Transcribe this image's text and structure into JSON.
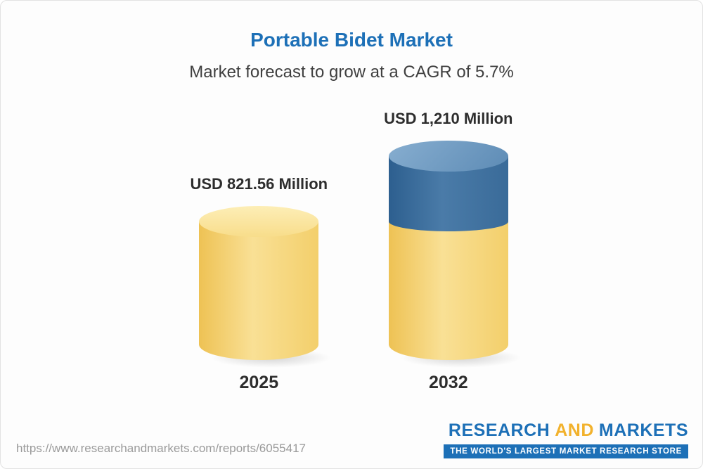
{
  "page": {
    "title": "Portable Bidet Market",
    "subtitle": "Market forecast to grow at a CAGR of 5.7%"
  },
  "chart_data": {
    "type": "bar",
    "title": "Portable Bidet Market",
    "subtitle": "Market forecast to grow at a CAGR of 5.7%",
    "unit": "USD Million",
    "categories": [
      "2025",
      "2032"
    ],
    "values": [
      821.56,
      1210
    ],
    "value_labels": [
      "USD 821.56 Million",
      "USD 1,210 Million"
    ],
    "cagr_percent": 5.7,
    "ylim": [
      0,
      1210
    ],
    "legend_position": "none",
    "grid": false,
    "colors": {
      "base_segment": "#F5D36C",
      "growth_segment": "#3D6E9E",
      "title": "#1D70B7"
    }
  },
  "footer": {
    "url": "https://www.researchandmarkets.com/reports/6055417",
    "brand": {
      "research": "RESEARCH",
      "and": "AND",
      "markets": "MARKETS",
      "tagline": "THE WORLD'S LARGEST MARKET RESEARCH STORE"
    }
  }
}
